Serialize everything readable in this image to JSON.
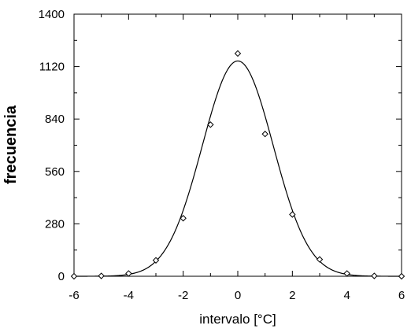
{
  "chart_data": {
    "type": "scatter",
    "xlabel": "intervalo [°C]",
    "ylabel": "frecuencia",
    "xlim": [
      -6,
      6
    ],
    "ylim": [
      0,
      1400
    ],
    "xticks": [
      -6,
      -4,
      -2,
      0,
      2,
      4,
      6
    ],
    "yticks": [
      0,
      280,
      560,
      840,
      1120,
      1400
    ],
    "grid": false,
    "series": [
      {
        "type": "scatter",
        "marker": "diamond",
        "points": [
          {
            "x": -6,
            "y": 0
          },
          {
            "x": -5,
            "y": 2
          },
          {
            "x": -4,
            "y": 15
          },
          {
            "x": -3,
            "y": 85
          },
          {
            "x": -2,
            "y": 310
          },
          {
            "x": -1,
            "y": 810
          },
          {
            "x": 0,
            "y": 1190
          },
          {
            "x": 1,
            "y": 760
          },
          {
            "x": 2,
            "y": 330
          },
          {
            "x": 3,
            "y": 90
          },
          {
            "x": 4,
            "y": 15
          },
          {
            "x": 5,
            "y": 2
          },
          {
            "x": 6,
            "y": 0
          }
        ]
      },
      {
        "type": "line",
        "function": "gaussian",
        "amplitude": 1150,
        "mean": 0,
        "sigma": 1.3
      }
    ]
  }
}
